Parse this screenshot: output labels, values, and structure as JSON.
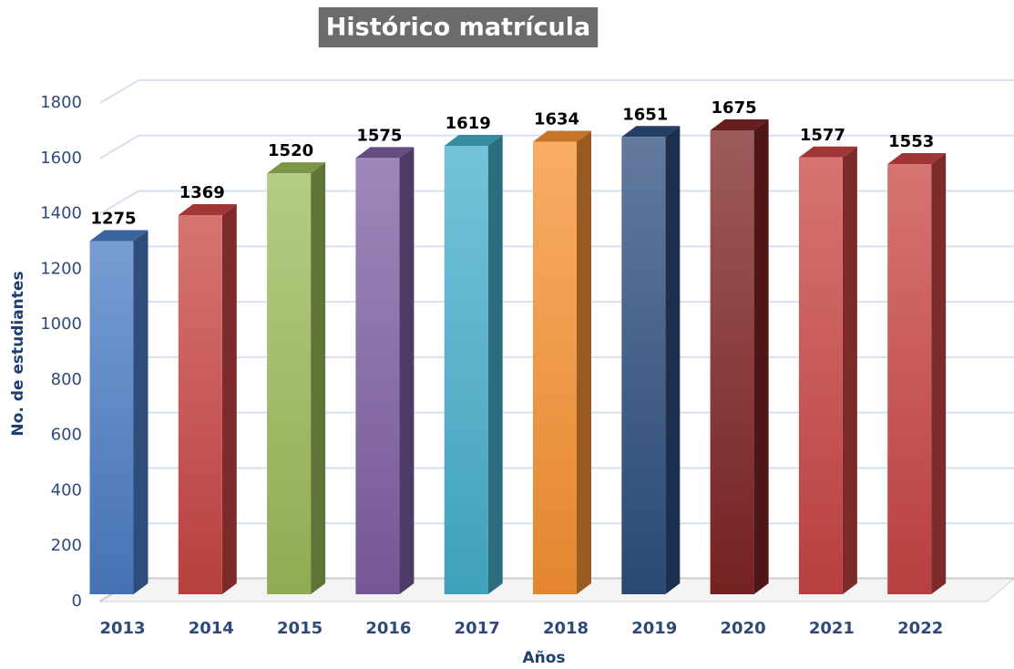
{
  "chart_data": {
    "type": "bar3d",
    "title": "Histórico matrícula",
    "y_label": "No. de estudiantes",
    "x_label": "Años",
    "categories": [
      "2013",
      "2014",
      "2015",
      "2016",
      "2017",
      "2018",
      "2019",
      "2020",
      "2021",
      "2022"
    ],
    "values": [
      1275,
      1369,
      1520,
      1575,
      1619,
      1634,
      1651,
      1675,
      1577,
      1553
    ],
    "colors": [
      "#4a7cc4",
      "#c84543",
      "#9bbb59",
      "#7e5fa3",
      "#45afcb",
      "#f79232",
      "#2d4e7e",
      "#7e2424",
      "#c84543",
      "#c84543"
    ],
    "ylim": [
      0,
      1800
    ],
    "yticks": [
      0,
      200,
      400,
      600,
      800,
      1000,
      1200,
      1400,
      1600,
      1800
    ],
    "grid": true
  }
}
